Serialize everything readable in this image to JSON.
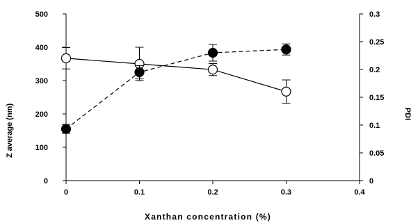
{
  "chart_data": {
    "type": "line",
    "title": "",
    "xlabel": "Xanthan concentration (%)",
    "ylabel_left": "Z average (nm)",
    "ylabel_right": "PDI",
    "x_ticks": [
      "0",
      "0.1",
      "0.2",
      "0.3",
      "0.4"
    ],
    "y_left_ticks": [
      "0",
      "100",
      "200",
      "300",
      "400",
      "500"
    ],
    "y_right_ticks": [
      "0",
      "0.05",
      "0.1",
      "0.15",
      "0.2",
      "0.25",
      "0.3"
    ],
    "xlim": [
      0,
      0.4
    ],
    "ylim_left": [
      0,
      500
    ],
    "ylim_right": [
      0,
      0.3
    ],
    "grid": false,
    "legend": "none",
    "series": [
      {
        "axis": "left",
        "style": "solid",
        "marker": "open-circle",
        "x": [
          0,
          0.1,
          0.2,
          0.3
        ],
        "y": [
          367,
          350,
          333,
          267
        ],
        "err": [
          32,
          50,
          18,
          35
        ]
      },
      {
        "axis": "right",
        "style": "dashed",
        "marker": "filled-circle",
        "x": [
          0,
          0.1,
          0.2,
          0.3
        ],
        "y": [
          0.093,
          0.195,
          0.23,
          0.236
        ],
        "err": [
          0.008,
          0.012,
          0.015,
          0.01
        ]
      }
    ]
  }
}
